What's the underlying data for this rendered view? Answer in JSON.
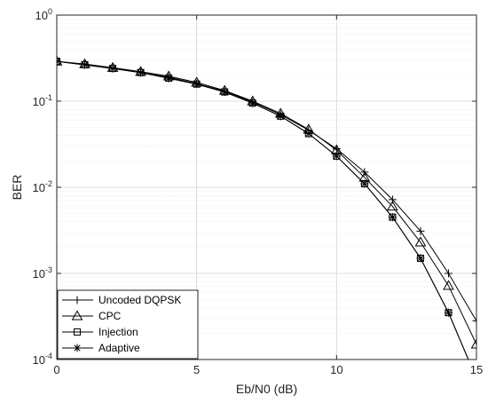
{
  "chart_data": {
    "type": "line",
    "xlabel": "Eb/N0 (dB)",
    "ylabel": "BER",
    "xlim": [
      0,
      15
    ],
    "ylim": [
      0.0001,
      1
    ],
    "yscale": "log",
    "grid": true,
    "legend_position": "bottom-left",
    "x_ticks": [
      "0",
      "5",
      "10",
      "15"
    ],
    "y_ticks": [
      {
        "base": "10",
        "exp": "0"
      },
      {
        "base": "10",
        "exp": "-1"
      },
      {
        "base": "10",
        "exp": "-2"
      },
      {
        "base": "10",
        "exp": "-3"
      },
      {
        "base": "10",
        "exp": "-4"
      }
    ],
    "x": [
      0,
      1,
      2,
      3,
      4,
      5,
      6,
      7,
      8,
      9,
      10,
      11,
      12,
      13,
      14,
      15
    ],
    "series": [
      {
        "name": "Uncoded DQPSK",
        "marker": "plus",
        "values": [
          0.29,
          0.265,
          0.24,
          0.215,
          0.19,
          0.16,
          0.13,
          0.098,
          0.07,
          0.046,
          0.028,
          0.015,
          0.0072,
          0.0031,
          0.001,
          0.00028
        ]
      },
      {
        "name": "CPC",
        "marker": "triangle",
        "values": [
          0.29,
          0.27,
          0.245,
          0.22,
          0.195,
          0.165,
          0.133,
          0.1,
          0.072,
          0.047,
          0.027,
          0.013,
          0.006,
          0.0023,
          0.00072,
          0.00015
        ]
      },
      {
        "name": "Injection",
        "marker": "square",
        "values": [
          0.29,
          0.265,
          0.24,
          0.215,
          0.185,
          0.158,
          0.128,
          0.095,
          0.067,
          0.042,
          0.023,
          0.011,
          0.0045,
          0.0015,
          0.00035,
          6e-05
        ]
      },
      {
        "name": "Adaptive",
        "marker": "asterisk",
        "values": [
          0.29,
          0.265,
          0.24,
          0.215,
          0.185,
          0.158,
          0.128,
          0.095,
          0.067,
          0.042,
          0.023,
          0.011,
          0.0045,
          0.0015,
          0.00035,
          6e-05
        ]
      }
    ]
  }
}
